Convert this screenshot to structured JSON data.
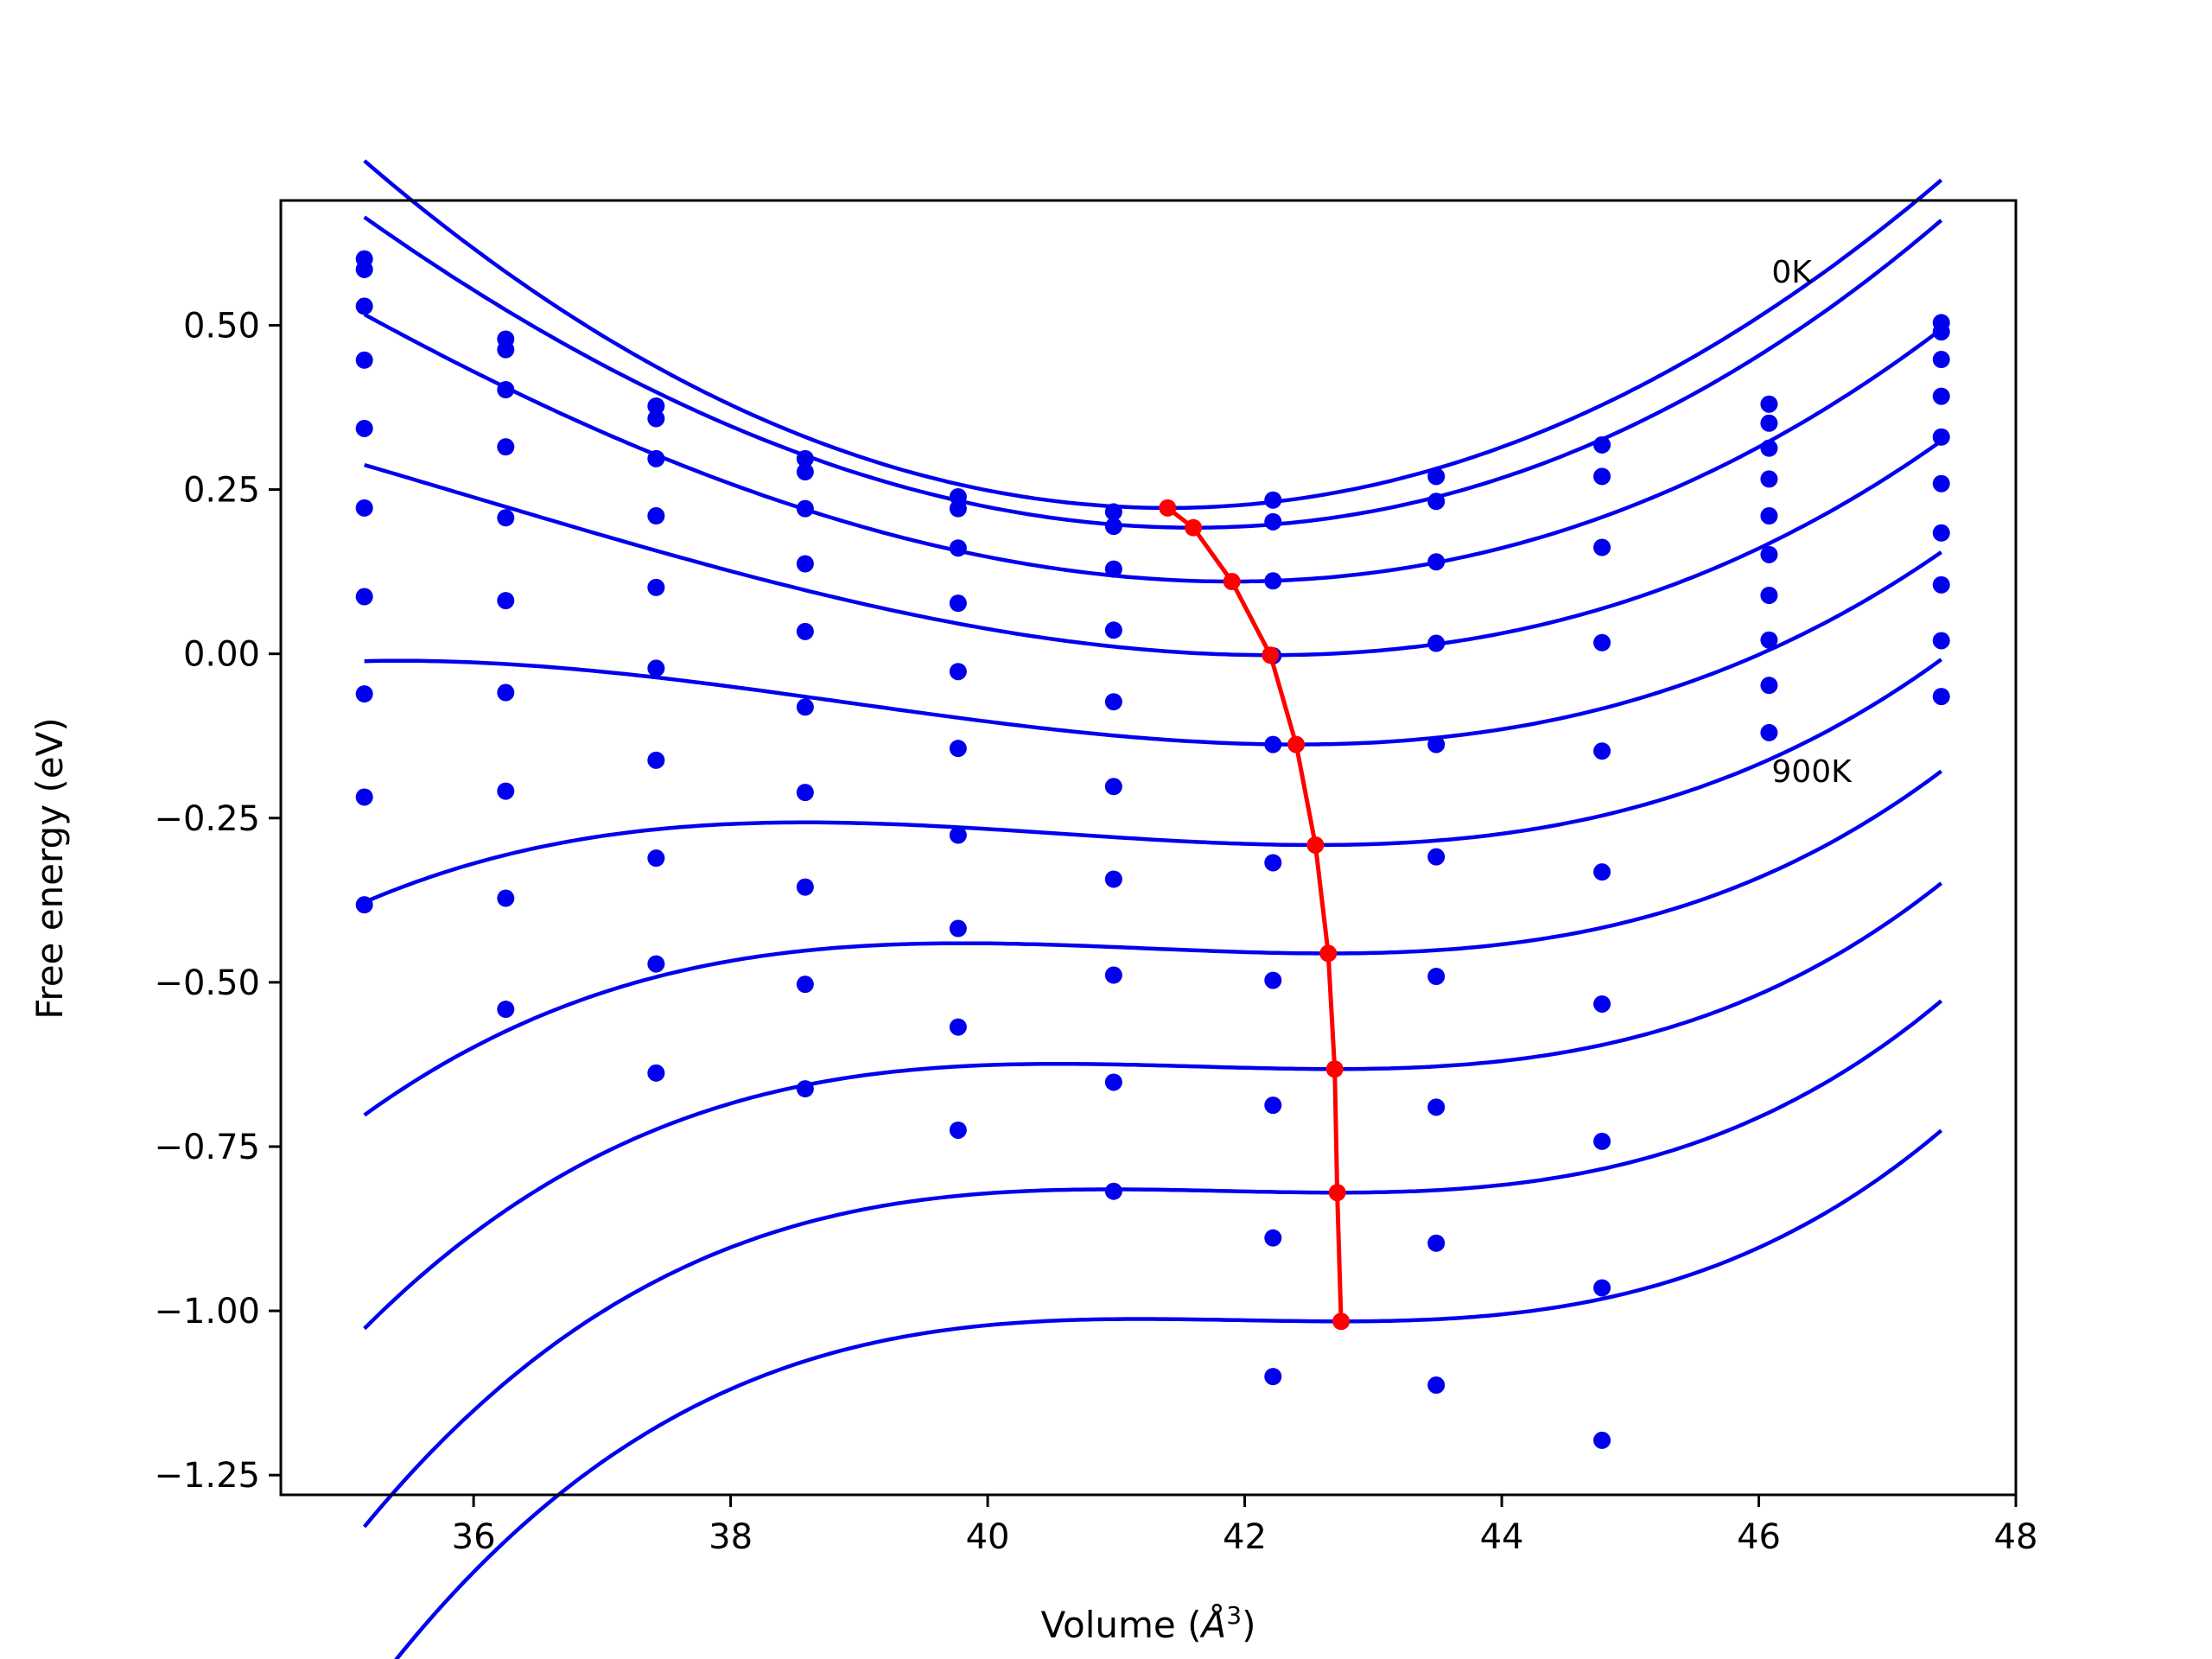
{
  "chart_data": {
    "type": "scatter",
    "title": "",
    "xlabel": "Volume (Å³)",
    "xlabel_main": "Volume (",
    "xlabel_unit": "Å",
    "xlabel_sup": "3",
    "xlabel_close": ")",
    "ylabel": "Free energy (eV)",
    "xlim": [
      34.5,
      48.0
    ],
    "ylim": [
      -1.28,
      0.69
    ],
    "grid": false,
    "legend": "none",
    "x_ticks": [
      36,
      38,
      40,
      42,
      44,
      46,
      48
    ],
    "x_tick_labels": [
      "36",
      "38",
      "40",
      "42",
      "44",
      "46",
      "48"
    ],
    "y_ticks": [
      0.5,
      0.25,
      0.0,
      -0.25,
      -0.5,
      -0.75,
      -1.0,
      -1.25
    ],
    "y_tick_labels": [
      "0.50",
      "0.25",
      "0.00",
      "−0.25",
      "−0.50",
      "−0.75",
      "−1.00",
      "−1.25"
    ],
    "annotations": [
      {
        "text": "0K",
        "x": 46.1,
        "y": 0.565
      },
      {
        "text": "900K",
        "x": 46.1,
        "y": -0.195
      }
    ],
    "colors": {
      "data": "#0000ee",
      "fit": "#0000ee",
      "minimum": "#ff0000",
      "axes": "#000000"
    },
    "volumes": [
      35.15,
      36.25,
      37.42,
      38.58,
      39.77,
      40.98,
      42.22,
      43.49,
      44.78,
      46.08,
      47.42
    ],
    "series": [
      {
        "values": [
          0.601,
          0.479,
          0.377,
          0.297,
          0.239,
          0.216,
          0.234,
          0.27,
          0.318,
          0.38,
          0.504
        ],
        "fit": {
          "vmin": 41.4,
          "fmin": 0.222,
          "a": 0.01365,
          "b": 2e-05
        }
      },
      {
        "values": [
          0.585,
          0.463,
          0.358,
          0.277,
          0.221,
          0.194,
          0.201,
          0.232,
          0.27,
          0.351,
          0.49
        ],
        "fit": {
          "vmin": 41.6,
          "fmin": 0.192,
          "a": 0.01265,
          "b": 0.0002
        }
      },
      {
        "values": [
          0.529,
          0.402,
          0.297,
          0.221,
          0.161,
          0.129,
          0.111,
          0.14,
          0.162,
          0.313,
          0.448
        ],
        "fit": {
          "vmin": 41.9,
          "fmin": 0.11,
          "a": 0.01095,
          "b": 0.0003
        }
      },
      {
        "values": [
          0.447,
          0.315,
          0.21,
          0.137,
          0.077,
          0.036,
          -0.003,
          0.016,
          0.017,
          0.266,
          0.392
        ],
        "fit": {
          "vmin": 42.2,
          "fmin": -0.002,
          "a": 0.00935,
          "b": 0.0005
        }
      },
      {
        "values": [
          0.343,
          0.207,
          0.101,
          0.034,
          -0.027,
          -0.073,
          -0.138,
          -0.138,
          -0.148,
          0.21,
          0.33
        ],
        "fit": {
          "vmin": 42.4,
          "fmin": -0.138,
          "a": 0.00785,
          "b": 0.00075
        }
      },
      {
        "values": [
          0.222,
          0.081,
          -0.022,
          -0.081,
          -0.144,
          -0.202,
          -0.318,
          -0.309,
          -0.332,
          0.151,
          0.259
        ],
        "fit": {
          "vmin": 42.55,
          "fmin": -0.291,
          "a": 0.00655,
          "b": 0.0011
        }
      },
      {
        "values": [
          0.087,
          -0.059,
          -0.162,
          -0.211,
          -0.276,
          -0.343,
          -0.497,
          -0.491,
          -0.533,
          0.089,
          0.184
        ],
        "fit": {
          "vmin": 42.65,
          "fmin": -0.456,
          "a": 0.00575,
          "b": 0.00135
        }
      },
      {
        "values": [
          -0.061,
          -0.209,
          -0.311,
          -0.355,
          -0.418,
          -0.489,
          -0.687,
          -0.69,
          -0.742,
          0.021,
          0.105
        ],
        "fit": {
          "vmin": 42.7,
          "fmin": -0.632,
          "a": 0.00515,
          "b": 0.0016
        }
      },
      {
        "values": [
          -0.218,
          -0.372,
          -0.472,
          -0.503,
          -0.568,
          -0.652,
          -0.889,
          -0.897,
          -0.965,
          -0.048,
          0.02
        ],
        "fit": {
          "vmin": 42.72,
          "fmin": -0.82,
          "a": 0.00475,
          "b": 0.0018
        }
      },
      {
        "values": [
          -0.382,
          -0.541,
          -0.638,
          -0.662,
          -0.725,
          -0.818,
          -1.1,
          -1.113,
          -1.197,
          -0.12,
          -0.065
        ],
        "fit": {
          "vmin": 42.75,
          "fmin": -1.016,
          "a": 0.00445,
          "b": 0.0019
        }
      }
    ],
    "minimum_line": {
      "x": [
        41.4,
        41.6,
        41.9,
        42.2,
        42.4,
        42.55,
        42.65,
        42.7,
        42.72,
        42.75
      ],
      "y": [
        0.222,
        0.192,
        0.11,
        -0.002,
        -0.138,
        -0.291,
        -0.456,
        -0.632,
        -0.82,
        -1.016
      ]
    }
  }
}
